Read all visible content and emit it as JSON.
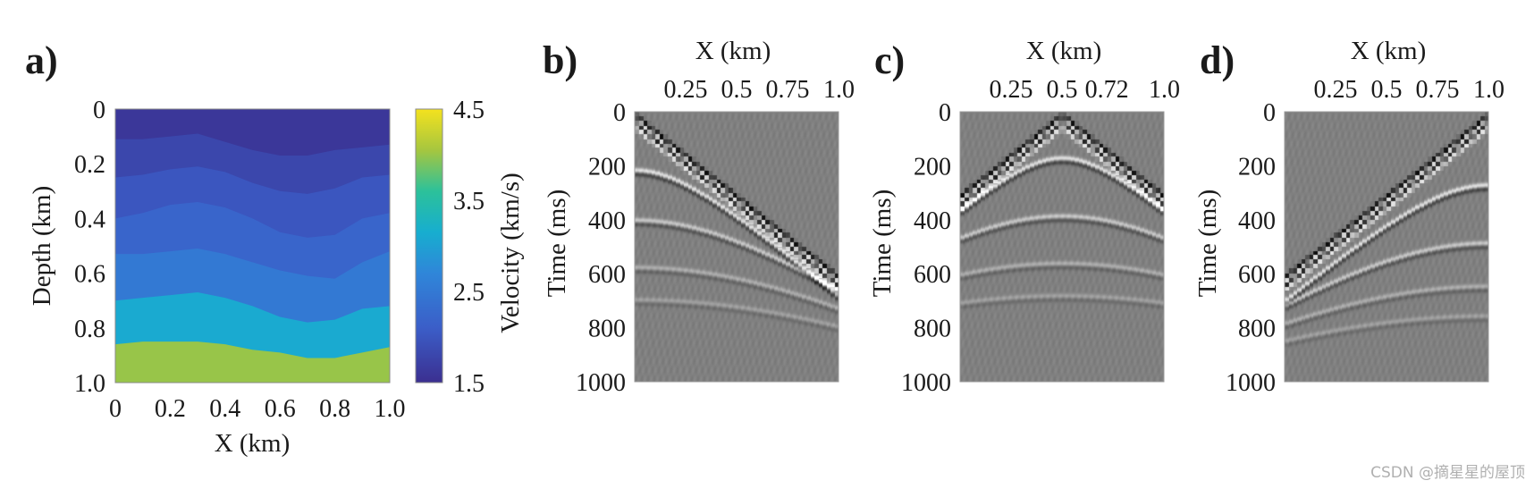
{
  "watermark": "CSDN @摘星星的屋顶",
  "chart_data": [
    {
      "panel": "a)",
      "type": "heatmap",
      "xlabel": "X (km)",
      "ylabel": "Depth (km)",
      "xticks": [
        "0",
        "0.2",
        "0.4",
        "0.6",
        "0.8",
        "1.0"
      ],
      "yticks": [
        "0",
        "0.2",
        "0.4",
        "0.6",
        "0.8",
        "1.0"
      ],
      "xlim": [
        0,
        1.0
      ],
      "ylim": [
        0,
        1.0
      ],
      "colorbar": {
        "label": "Velocity (km/s)",
        "ticks": [
          "4.5",
          "3.5",
          "2.5",
          "1.5"
        ],
        "range": [
          1.5,
          4.5
        ]
      },
      "x": [
        0,
        0.1,
        0.2,
        0.3,
        0.4,
        0.5,
        0.6,
        0.7,
        0.8,
        0.9,
        1.0
      ],
      "layers": [
        {
          "velocity": 1.6,
          "top": [
            0,
            0,
            0,
            0,
            0,
            0,
            0,
            0,
            0,
            0,
            0
          ]
        },
        {
          "velocity": 1.8,
          "top": [
            0.11,
            0.11,
            0.1,
            0.09,
            0.12,
            0.15,
            0.17,
            0.17,
            0.15,
            0.14,
            0.13
          ]
        },
        {
          "velocity": 2.0,
          "top": [
            0.25,
            0.24,
            0.22,
            0.21,
            0.23,
            0.27,
            0.3,
            0.31,
            0.29,
            0.25,
            0.24
          ]
        },
        {
          "velocity": 2.2,
          "top": [
            0.4,
            0.38,
            0.35,
            0.34,
            0.36,
            0.4,
            0.45,
            0.47,
            0.46,
            0.4,
            0.38
          ]
        },
        {
          "velocity": 2.5,
          "top": [
            0.53,
            0.53,
            0.52,
            0.51,
            0.53,
            0.56,
            0.59,
            0.61,
            0.62,
            0.56,
            0.52
          ]
        },
        {
          "velocity": 3.1,
          "top": [
            0.7,
            0.69,
            0.68,
            0.67,
            0.69,
            0.72,
            0.76,
            0.78,
            0.77,
            0.73,
            0.72
          ]
        },
        {
          "velocity": 4.0,
          "top": [
            0.86,
            0.85,
            0.85,
            0.85,
            0.86,
            0.88,
            0.89,
            0.91,
            0.91,
            0.89,
            0.87
          ]
        }
      ]
    },
    {
      "panel": "b)",
      "type": "heatmap",
      "title": "X (km)",
      "ylabel": "Time (ms)",
      "xticks": [
        "0.25",
        "0.5",
        "0.75",
        "1.0"
      ],
      "yticks": [
        "0",
        "200",
        "400",
        "600",
        "800",
        "1000"
      ],
      "ylim": [
        0,
        1000
      ],
      "source_x": 0.0,
      "direct_wave": {
        "t0": 20,
        "slope_ms_per_km": 600
      },
      "reflections_t0": [
        215,
        400,
        575,
        695
      ]
    },
    {
      "panel": "c)",
      "type": "heatmap",
      "title": "X (km)",
      "ylabel": "Time (ms)",
      "xticks": [
        "0.25",
        "0.5",
        "0.72",
        "1.0"
      ],
      "yticks": [
        "0",
        "200",
        "400",
        "600",
        "800",
        "1000"
      ],
      "ylim": [
        0,
        1000
      ],
      "source_x": 0.5,
      "direct_wave": {
        "t0": 20,
        "slope_ms_per_km": 600
      },
      "reflections_t0": [
        170,
        385,
        560,
        680
      ]
    },
    {
      "panel": "d)",
      "type": "heatmap",
      "title": "X (km)",
      "ylabel": "Time (ms)",
      "xticks": [
        "0.25",
        "0.5",
        "0.75",
        "1.0"
      ],
      "yticks": [
        "0",
        "200",
        "400",
        "600",
        "800",
        "1000"
      ],
      "ylim": [
        0,
        1000
      ],
      "source_x": 1.0,
      "direct_wave": {
        "t0": 20,
        "slope_ms_per_km": 600
      },
      "reflections_t0": [
        270,
        485,
        645,
        755
      ]
    }
  ]
}
